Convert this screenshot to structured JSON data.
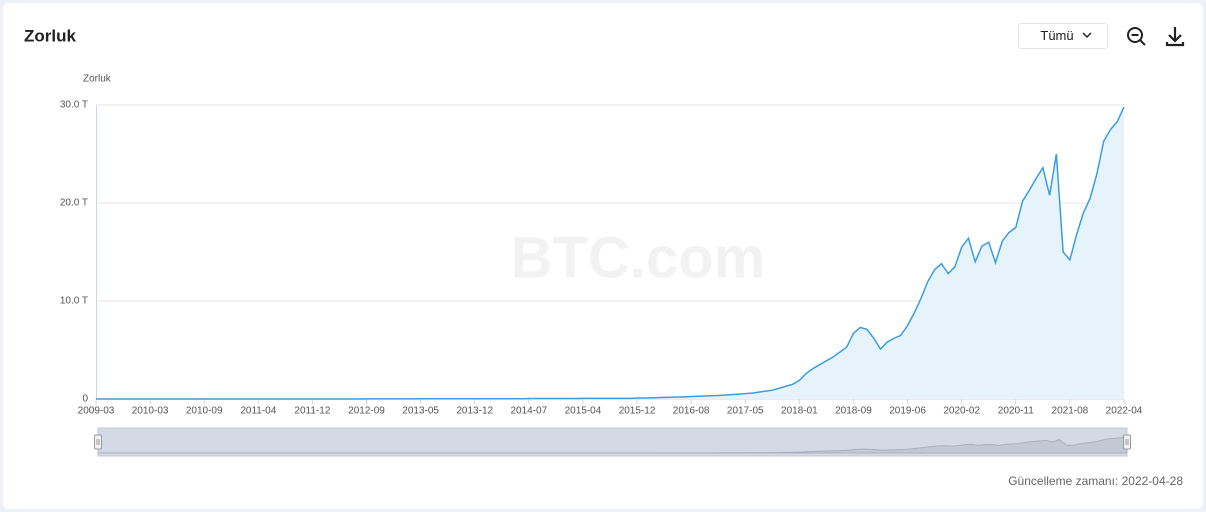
{
  "chart_data": {
    "type": "area",
    "title": "Zorluk",
    "y_label": "Zorluk",
    "range_selector": "Tümü",
    "watermark": "BTC.com",
    "update_note": "Güncelleme zamanı: 2022-04-28",
    "categories": [
      "2009-03",
      null,
      null,
      null,
      null,
      null,
      null,
      null,
      "2010-03",
      null,
      null,
      null,
      null,
      null,
      null,
      null,
      "2010-09",
      null,
      null,
      null,
      null,
      null,
      null,
      null,
      "2011-04",
      null,
      null,
      null,
      null,
      null,
      null,
      null,
      "2011-12",
      null,
      null,
      null,
      null,
      null,
      null,
      null,
      "2012-09",
      null,
      null,
      null,
      null,
      null,
      null,
      null,
      "2013-05",
      null,
      null,
      null,
      null,
      null,
      null,
      null,
      "2013-12",
      null,
      null,
      null,
      null,
      null,
      null,
      null,
      "2014-07",
      null,
      null,
      null,
      null,
      null,
      null,
      null,
      "2015-04",
      null,
      null,
      null,
      null,
      null,
      null,
      null,
      "2015-12",
      null,
      null,
      null,
      null,
      null,
      null,
      null,
      "2016-08",
      null,
      null,
      null,
      null,
      null,
      null,
      null,
      "2017-05",
      null,
      null,
      null,
      null,
      null,
      null,
      null,
      "2018-01",
      null,
      null,
      null,
      null,
      null,
      null,
      null,
      "2018-09",
      null,
      null,
      null,
      null,
      null,
      null,
      null,
      "2019-06",
      null,
      null,
      null,
      null,
      null,
      null,
      null,
      "2020-02",
      null,
      null,
      null,
      null,
      null,
      null,
      null,
      "2020-11",
      null,
      null,
      null,
      null,
      null,
      null,
      null,
      "2021-08",
      null,
      null,
      null,
      null,
      null,
      null,
      null,
      "2022-04"
    ],
    "series": [
      {
        "name": "Zorluk",
        "color": "#3a9de0",
        "fill": "#e7f3fb",
        "values": [
          0,
          0,
          0,
          0,
          0,
          0,
          0,
          0,
          0,
          0,
          0,
          0,
          0,
          0,
          0,
          0,
          0,
          0,
          0,
          0,
          0,
          0,
          0,
          0,
          0,
          0,
          0,
          0,
          0,
          0,
          0,
          0,
          0,
          0,
          0,
          0,
          0,
          0,
          0,
          0,
          0.01,
          0.01,
          0.01,
          0.01,
          0.01,
          0.01,
          0.01,
          0.01,
          0.02,
          0.02,
          0.02,
          0.02,
          0.02,
          0.02,
          0.02,
          0.02,
          0.03,
          0.03,
          0.03,
          0.03,
          0.03,
          0.03,
          0.03,
          0.03,
          0.05,
          0.05,
          0.05,
          0.05,
          0.05,
          0.05,
          0.05,
          0.05,
          0.07,
          0.07,
          0.07,
          0.07,
          0.07,
          0.07,
          0.07,
          0.07,
          0.1,
          0.1,
          0.12,
          0.14,
          0.16,
          0.18,
          0.2,
          0.22,
          0.25,
          0.28,
          0.3,
          0.33,
          0.36,
          0.4,
          0.45,
          0.5,
          0.55,
          0.6,
          0.7,
          0.8,
          0.9,
          1.1,
          1.3,
          1.5,
          1.9,
          2.6,
          3.1,
          3.5,
          3.9,
          4.3,
          4.8,
          5.3,
          6.7,
          7.3,
          7.1,
          6.2,
          5.1,
          5.8,
          6.2,
          6.5,
          7.5,
          8.8,
          10.3,
          12,
          13.2,
          13.8,
          12.8,
          13.5,
          15.5,
          16.4,
          14,
          15.6,
          16,
          13.9,
          16.1,
          17,
          17.5,
          20.2,
          21.3,
          22.5,
          23.6,
          20.8,
          25,
          15,
          14.2,
          16.8,
          19,
          20.5,
          23,
          26.3,
          27.5,
          28.3,
          29.8
        ]
      }
    ],
    "ylim": [
      0,
      30
    ],
    "yticks": [
      0,
      {
        "value": 10,
        "label": "10.0 T"
      },
      {
        "value": 20,
        "label": "20.0 T"
      },
      {
        "value": 30,
        "label": "30.0 T"
      }
    ],
    "grid": true
  }
}
